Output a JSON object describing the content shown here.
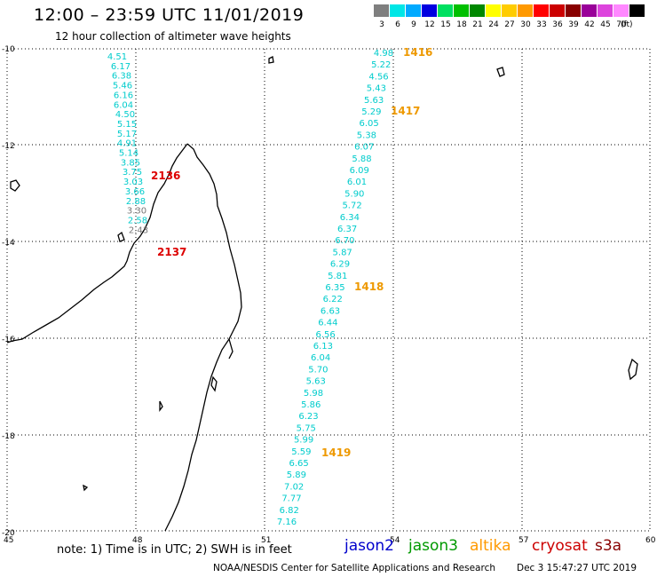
{
  "header": {
    "title": "12:00 – 23:59 UTC 11/01/2019",
    "subtitle": "12 hour collection of altimeter wave heights"
  },
  "legend": {
    "unit": "(ft)",
    "bins": [
      {
        "label": "3",
        "color": "#7f7f7f"
      },
      {
        "label": "6",
        "color": "#00e6e6"
      },
      {
        "label": "9",
        "color": "#00aaff"
      },
      {
        "label": "12",
        "color": "#0000e0"
      },
      {
        "label": "15",
        "color": "#00e060"
      },
      {
        "label": "18",
        "color": "#00c000"
      },
      {
        "label": "21",
        "color": "#008800"
      },
      {
        "label": "24",
        "color": "#ffff00"
      },
      {
        "label": "27",
        "color": "#ffcc00"
      },
      {
        "label": "30",
        "color": "#ff9900"
      },
      {
        "label": "33",
        "color": "#ff0000"
      },
      {
        "label": "36",
        "color": "#cc0000"
      },
      {
        "label": "39",
        "color": "#880000"
      },
      {
        "label": "42",
        "color": "#990099"
      },
      {
        "label": "45",
        "color": "#dd44dd"
      },
      {
        "label": "70",
        "color": "#ff88ff"
      },
      {
        "label": "",
        "color": "#000000"
      }
    ]
  },
  "map": {
    "lat_ticks": [
      "-10",
      "-12",
      "-14",
      "-16",
      "-18",
      "-20"
    ],
    "lon_ticks": [
      "45",
      "48",
      "51",
      "54",
      "57",
      "60"
    ]
  },
  "tracks": [
    {
      "id": "west",
      "colors": [
        "#00cccc",
        "#00cccc",
        "#00cccc",
        "#00cccc",
        "#00cccc",
        "#00cccc",
        "#00cccc",
        "#00cccc",
        "#00cccc",
        "#00cccc",
        "#00cccc",
        "#00cccc",
        "#00cccc",
        "#00cccc",
        "#00cccc",
        "#00cccc",
        "#777777",
        "#00cccc",
        "#777777",
        "#777777"
      ],
      "values": [
        "4.51",
        "6.17",
        "6.38",
        "5.46",
        "6.16",
        "6.04",
        "4.50",
        "5.15",
        "5.17",
        "4.91",
        "5.14",
        "3.85",
        "3.75",
        "3.03",
        "3.66",
        "2.88",
        "3.30",
        "2.58",
        "2.43",
        ""
      ],
      "time_labels": [
        {
          "text": "2136",
          "color": "#dd0000"
        },
        {
          "text": "2137",
          "color": "#dd0000"
        }
      ]
    },
    {
      "id": "east",
      "values": [
        "4.98",
        "5.22",
        "4.56",
        "5.43",
        "5.63",
        "5.29",
        "6.05",
        "5.38",
        "6.07",
        "5.88",
        "6.09",
        "6.01",
        "5.90",
        "5.72",
        "6.34",
        "6.37",
        "6.70",
        "5.87",
        "6.29",
        "5.81",
        "6.35",
        "6.22",
        "6.63",
        "6.44",
        "6.56",
        "6.13",
        "6.04",
        "5.70",
        "5.63",
        "5.98",
        "5.86",
        "6.23",
        "5.75",
        "5.99",
        "5.59",
        "6.65",
        "5.89",
        "7.02",
        "7.77",
        "6.82",
        "7.16"
      ],
      "time_labels": [
        {
          "text": "1416",
          "color": "#ee9900"
        },
        {
          "text": "1417",
          "color": "#ee9900"
        },
        {
          "text": "1418",
          "color": "#ee9900"
        },
        {
          "text": "1419",
          "color": "#ee9900"
        }
      ]
    }
  ],
  "footer": {
    "note": "note:  1) Time is in UTC;  2) SWH is in feet",
    "satellites": [
      {
        "name": "jason2",
        "color": "#0000cc"
      },
      {
        "name": "jason3",
        "color": "#009900"
      },
      {
        "name": "altika",
        "color": "#ff9900"
      },
      {
        "name": "cryosat",
        "color": "#cc0000"
      },
      {
        "name": "s3a",
        "color": "#880000"
      }
    ],
    "credit": "NOAA/NESDIS Center for Satellite Applications and Research",
    "timestamp": "Dec  3 15:47:27 UTC 2019"
  }
}
